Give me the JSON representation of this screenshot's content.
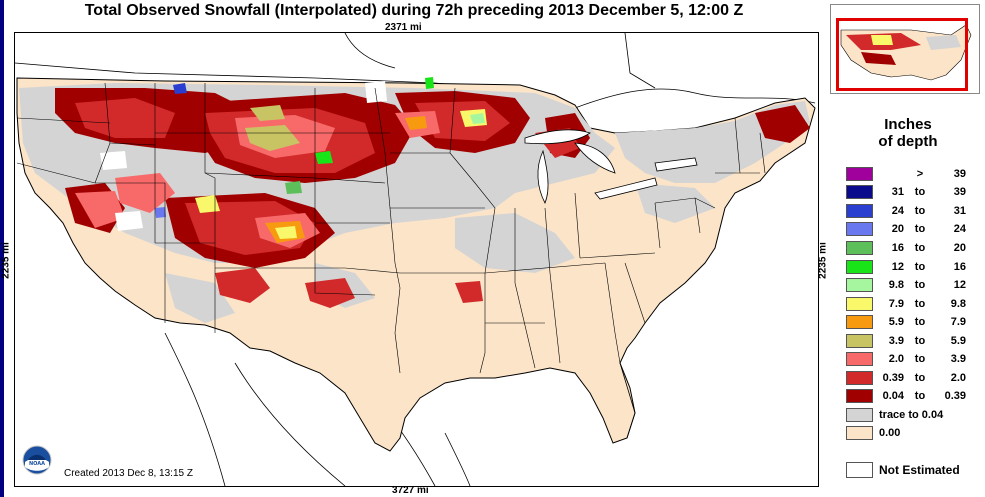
{
  "title": "Total Observed Snowfall (Interpolated) during 72h preceding 2013 December 5, 12:00 Z",
  "dimensions": {
    "top": "2371 mi",
    "bottom": "3727 mi",
    "left": "2235 mi",
    "right": "2235 mi"
  },
  "created": "Created 2013 Dec 8, 13:15 Z",
  "logo_text": "NOAA",
  "legend": {
    "title_line1": "Inches",
    "title_line2": "of depth",
    "rows": [
      {
        "lo": "",
        "to": ">",
        "hi": "39",
        "color": "#a0009c"
      },
      {
        "lo": "31",
        "to": "to",
        "hi": "39",
        "color": "#0a0a8c"
      },
      {
        "lo": "24",
        "to": "to",
        "hi": "31",
        "color": "#2a3ed0"
      },
      {
        "lo": "20",
        "to": "to",
        "hi": "24",
        "color": "#6a78f0"
      },
      {
        "lo": "16",
        "to": "to",
        "hi": "20",
        "color": "#5cbf5a"
      },
      {
        "lo": "12",
        "to": "to",
        "hi": "16",
        "color": "#18e418"
      },
      {
        "lo": "9.8",
        "to": "to",
        "hi": "12",
        "color": "#a6f6a0"
      },
      {
        "lo": "7.9",
        "to": "to",
        "hi": "9.8",
        "color": "#f8f86a"
      },
      {
        "lo": "5.9",
        "to": "to",
        "hi": "7.9",
        "color": "#f89a10"
      },
      {
        "lo": "3.9",
        "to": "to",
        "hi": "5.9",
        "color": "#c8c464"
      },
      {
        "lo": "2.0",
        "to": "to",
        "hi": "3.9",
        "color": "#f86a6a"
      },
      {
        "lo": "0.39",
        "to": "to",
        "hi": "2.0",
        "color": "#d22a2a"
      },
      {
        "lo": "0.04",
        "to": "to",
        "hi": "0.39",
        "color": "#a00000"
      },
      {
        "full": "trace to 0.04",
        "color": "#d4d4d4"
      },
      {
        "full": "0.00",
        "color": "#fbe4c8"
      }
    ],
    "not_estimated": "Not Estimated"
  },
  "colors": {
    "land_snow_free": "#fbe4c8",
    "trace": "#d4d4d4",
    "light": "#a00000",
    "moderate": "#d22a2a",
    "heavy": "#f86a6a",
    "inset_box": "#e00000"
  }
}
